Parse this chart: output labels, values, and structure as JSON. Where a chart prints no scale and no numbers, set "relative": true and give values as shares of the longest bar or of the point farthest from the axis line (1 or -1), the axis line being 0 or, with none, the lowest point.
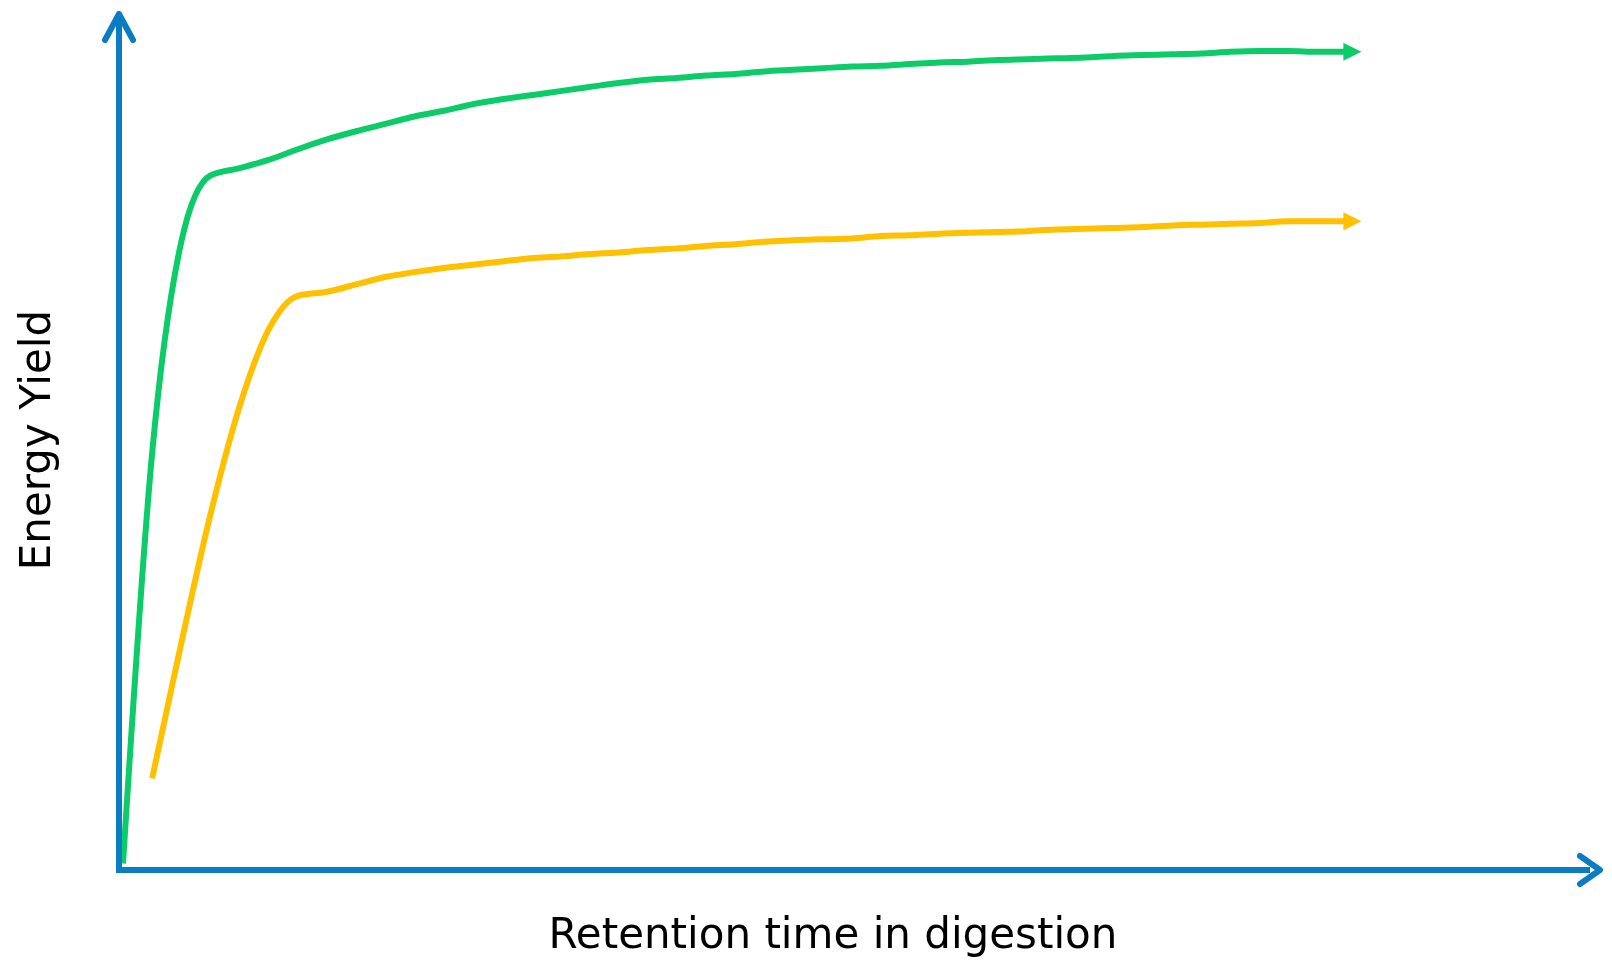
{
  "chart_data": {
    "type": "line",
    "relative": true,
    "xlabel": "Retention time in digestion",
    "ylabel": "Energy Yield",
    "categories": [
      null,
      null,
      null,
      null,
      null,
      null,
      null,
      null,
      null,
      null,
      null,
      null,
      null,
      null,
      null,
      null,
      null,
      null,
      null,
      null,
      null,
      null,
      null,
      null,
      null,
      null,
      null,
      null,
      null,
      null,
      null,
      null,
      null,
      null,
      null,
      null,
      null,
      null,
      null,
      null,
      null,
      null,
      null
    ],
    "series": [
      {
        "color": "#0ccc6a",
        "values": [
          0.008,
          0.509,
          0.767,
          0.848,
          0.857,
          0.867,
          0.88,
          0.892,
          0.902,
          0.911,
          0.92,
          0.927,
          0.935,
          0.941,
          0.946,
          0.951,
          0.956,
          0.961,
          0.965,
          0.967,
          0.97,
          0.972,
          0.975,
          0.977,
          0.979,
          0.981,
          0.982,
          0.984,
          0.986,
          0.987,
          0.989,
          0.99,
          0.991,
          0.992,
          0.994,
          0.995,
          0.996,
          0.997,
          0.999,
          1,
          1,
          0.999,
          0.999
        ]
      },
      {
        "color": "#ffc000",
        "values": [
          null,
          0.112,
          0.277,
          0.434,
          0.566,
          0.66,
          0.701,
          0.706,
          0.715,
          0.724,
          0.73,
          0.735,
          0.739,
          0.743,
          0.747,
          0.749,
          0.752,
          0.754,
          0.757,
          0.759,
          0.762,
          0.764,
          0.767,
          0.769,
          0.77,
          0.771,
          0.774,
          0.775,
          0.777,
          0.778,
          0.779,
          0.78,
          0.782,
          0.783,
          0.784,
          0.785,
          0.787,
          0.788,
          0.789,
          0.79,
          0.792,
          0.792,
          0.792
        ]
      }
    ]
  }
}
